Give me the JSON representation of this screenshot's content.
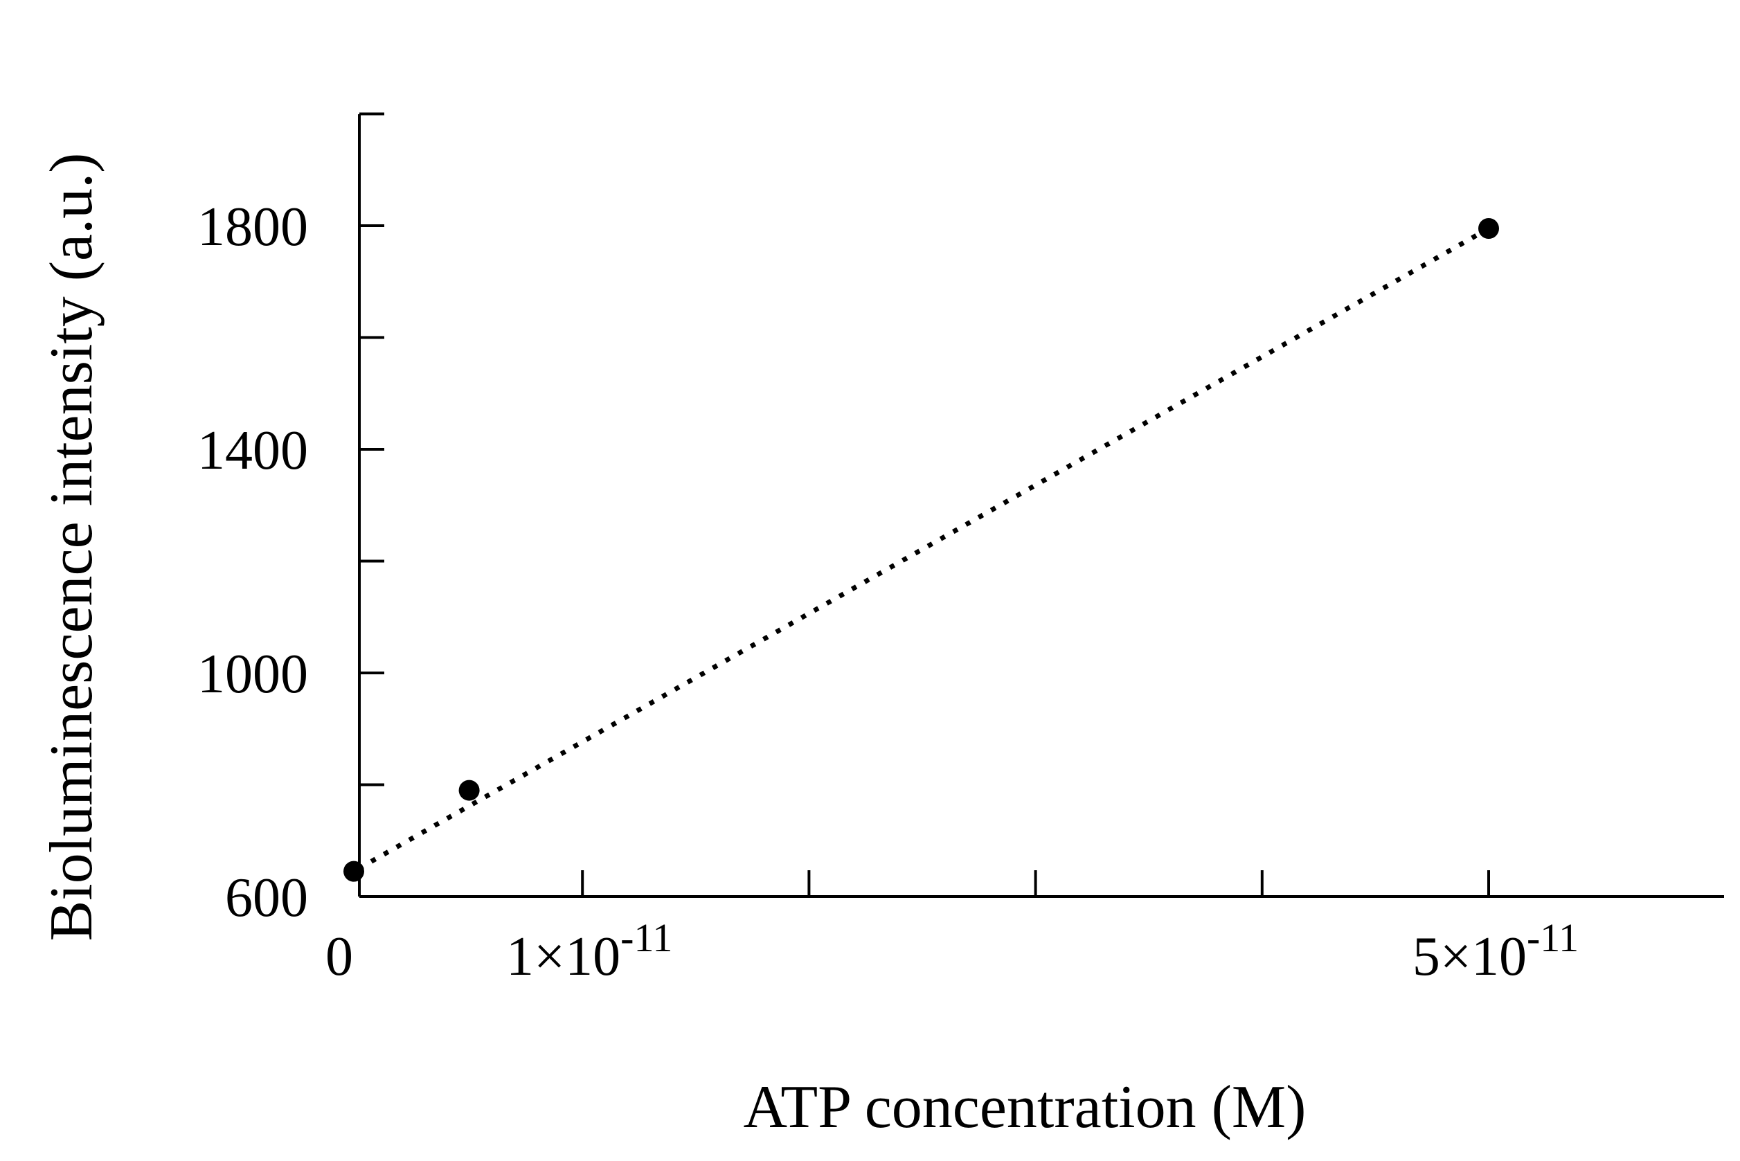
{
  "chart_data": {
    "type": "scatter",
    "title": "",
    "xlabel": "ATP concentration (M)",
    "ylabel": "Bioluminescence intensity (a.u.)",
    "xlim": [
      0,
      6e-11
    ],
    "ylim": [
      600,
      2000
    ],
    "x_ticks": [
      0,
      1e-11,
      2e-11,
      3e-11,
      4e-11,
      5e-11
    ],
    "x_tick_labels": [
      {
        "value": 0,
        "base": "0",
        "exp": ""
      },
      {
        "value": 1e-11,
        "base": "1×10",
        "exp": "-11"
      },
      {
        "value": 5e-11,
        "base": "5×10",
        "exp": "-11"
      }
    ],
    "y_ticks": [
      600,
      800,
      1000,
      1200,
      1400,
      1600,
      1800,
      2000
    ],
    "y_tick_labels": [
      {
        "value": 600,
        "label": "600"
      },
      {
        "value": 1000,
        "label": "1000"
      },
      {
        "value": 1400,
        "label": "1400"
      },
      {
        "value": 1800,
        "label": "1800"
      }
    ],
    "series": [
      {
        "x": [
          0,
          5e-12,
          5e-11
        ],
        "y": [
          645,
          790,
          1795
        ]
      }
    ],
    "trendline": {
      "style": "dotted",
      "x": [
        0,
        5e-11
      ],
      "y": [
        650,
        1795
      ]
    },
    "grid": false,
    "color": "#000000"
  }
}
